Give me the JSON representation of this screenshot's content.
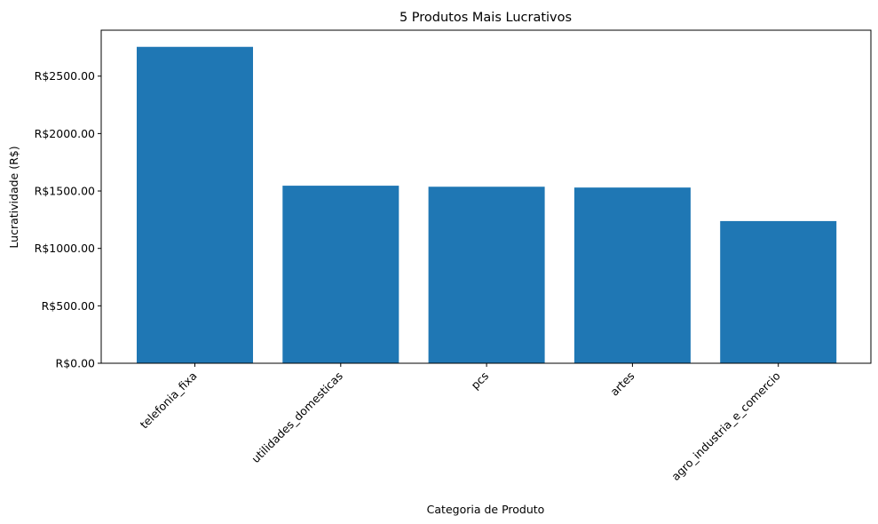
{
  "chart_data": {
    "type": "bar",
    "title": "5 Produtos Mais Lucrativos",
    "xlabel": "Categoria de Produto",
    "ylabel": "Lucratividade (R$)",
    "categories": [
      "telefonia_fixa",
      "utilidades_domesticas",
      "pcs",
      "artes",
      "agro_industria_e_comercio"
    ],
    "values": [
      2755,
      1546,
      1537,
      1530,
      1238
    ],
    "ylim": [
      0,
      2900
    ],
    "yticks": [
      0,
      500,
      1000,
      1500,
      2000,
      2500
    ],
    "ytick_labels": [
      "R$0.00",
      "R$500.00",
      "R$1000.00",
      "R$1500.00",
      "R$2000.00",
      "R$2500.00"
    ],
    "bar_color": "#1f77b4",
    "grid": false,
    "legend": "none",
    "xtick_rotation": "45° right-aligned"
  }
}
